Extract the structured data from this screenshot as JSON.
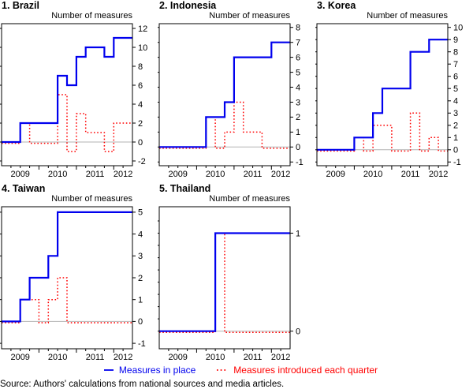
{
  "legend": {
    "in_place": "Measures in place",
    "introduced": "Measures introduced each quarter"
  },
  "footnote": "Source: Authors' calculations from national sources and media articles.",
  "colors": {
    "in_place": "#0000EE",
    "introduced": "#FF0000",
    "zero_line": "#B3B3B3",
    "frame": "#000000"
  },
  "chart_data": [
    {
      "type": "line",
      "step": true,
      "title": "1. Brazil",
      "ylabel": "Number of measures",
      "categories": [
        "2009Q1",
        "2009Q2",
        "2009Q3",
        "2009Q4",
        "2010Q1",
        "2010Q2",
        "2010Q3",
        "2010Q4",
        "2011Q1",
        "2011Q2",
        "2011Q3",
        "2011Q4",
        "2012Q1",
        "2012Q2"
      ],
      "xticklabels": [
        "2009",
        "2010",
        "2011",
        "2012"
      ],
      "series": [
        {
          "name": "Measures in place",
          "values": [
            0,
            0,
            2,
            2,
            2,
            2,
            7,
            6,
            9,
            10,
            10,
            9,
            11,
            11
          ]
        },
        {
          "name": "Measures introduced each quarter",
          "values": [
            0,
            0,
            2,
            0,
            0,
            0,
            5,
            -1,
            3,
            1,
            1,
            -1,
            2,
            2
          ]
        }
      ],
      "ylim": [
        -2.5,
        12.5
      ],
      "yticks": [
        -2,
        0,
        2,
        4,
        6,
        8,
        10,
        12
      ]
    },
    {
      "type": "line",
      "step": true,
      "title": "2. Indonesia",
      "ylabel": "Number of measures",
      "categories": [
        "2009Q1",
        "2009Q2",
        "2009Q3",
        "2009Q4",
        "2010Q1",
        "2010Q2",
        "2010Q3",
        "2010Q4",
        "2011Q1",
        "2011Q2",
        "2011Q3",
        "2011Q4",
        "2012Q1",
        "2012Q2"
      ],
      "xticklabels": [
        "2009",
        "2010",
        "2011",
        "2012"
      ],
      "series": [
        {
          "name": "Measures in place",
          "values": [
            0,
            0,
            0,
            0,
            0,
            2,
            2,
            3,
            6,
            6,
            6,
            6,
            7,
            7
          ]
        },
        {
          "name": "Measures introduced each quarter",
          "values": [
            0,
            0,
            0,
            0,
            0,
            2,
            0,
            1,
            3,
            1,
            1,
            0,
            0,
            0
          ]
        }
      ],
      "ylim": [
        -1.25,
        8.25
      ],
      "yticks": [
        -1,
        0,
        1,
        2,
        3,
        4,
        5,
        6,
        7,
        8
      ]
    },
    {
      "type": "line",
      "step": true,
      "title": "3. Korea",
      "ylabel": "Number of measures",
      "categories": [
        "2009Q1",
        "2009Q2",
        "2009Q3",
        "2009Q4",
        "2010Q1",
        "2010Q2",
        "2010Q3",
        "2010Q4",
        "2011Q1",
        "2011Q2",
        "2011Q3",
        "2011Q4",
        "2012Q1",
        "2012Q2"
      ],
      "xticklabels": [
        "2009",
        "2010",
        "2011",
        "2012"
      ],
      "series": [
        {
          "name": "Measures in place",
          "values": [
            0,
            0,
            0,
            0,
            1,
            1,
            3,
            5,
            5,
            5,
            8,
            8,
            9,
            9
          ]
        },
        {
          "name": "Measures introduced each quarter",
          "values": [
            0,
            0,
            0,
            0,
            1,
            0,
            2,
            2,
            0,
            0,
            3,
            0,
            1,
            0
          ]
        }
      ],
      "ylim": [
        -1.3,
        10.3
      ],
      "yticks": [
        -1,
        0,
        1,
        2,
        3,
        4,
        5,
        6,
        7,
        8,
        9,
        10
      ]
    },
    {
      "type": "line",
      "step": true,
      "title": "4. Taiwan",
      "ylabel": "Number of measures",
      "categories": [
        "2009Q1",
        "2009Q2",
        "2009Q3",
        "2009Q4",
        "2010Q1",
        "2010Q2",
        "2010Q3",
        "2010Q4",
        "2011Q1",
        "2011Q2",
        "2011Q3",
        "2011Q4",
        "2012Q1",
        "2012Q2"
      ],
      "xticklabels": [
        "2009",
        "2010",
        "2011",
        "2012"
      ],
      "series": [
        {
          "name": "Measures in place",
          "values": [
            0,
            0,
            1,
            2,
            2,
            3,
            5,
            5,
            5,
            5,
            5,
            5,
            5,
            5
          ]
        },
        {
          "name": "Measures introduced each quarter",
          "values": [
            0,
            0,
            1,
            1,
            0,
            1,
            2,
            0,
            0,
            0,
            0,
            0,
            0,
            0
          ]
        }
      ],
      "ylim": [
        -1.25,
        5.25
      ],
      "yticks": [
        -1,
        0,
        1,
        2,
        3,
        4,
        5
      ]
    },
    {
      "type": "line",
      "step": true,
      "title": "5. Thailand",
      "ylabel": "Number of measures",
      "categories": [
        "2009Q1",
        "2009Q2",
        "2009Q3",
        "2009Q4",
        "2010Q1",
        "2010Q2",
        "2010Q3",
        "2010Q4",
        "2011Q1",
        "2011Q2",
        "2011Q3",
        "2011Q4",
        "2012Q1",
        "2012Q2"
      ],
      "xticklabels": [
        "2009",
        "2010",
        "2011",
        "2012"
      ],
      "series": [
        {
          "name": "Measures in place",
          "values": [
            0,
            0,
            0,
            0,
            0,
            0,
            1,
            1,
            1,
            1,
            1,
            1,
            1,
            1
          ]
        },
        {
          "name": "Measures introduced each quarter",
          "values": [
            0,
            0,
            0,
            0,
            0,
            0,
            1,
            0,
            0,
            0,
            0,
            0,
            0,
            0
          ]
        }
      ],
      "ylim": [
        -0.18,
        1.27
      ],
      "yticks": [
        0,
        1
      ],
      "yminor": [
        0.125,
        0.25,
        0.375,
        0.5,
        0.625,
        0.75,
        0.875,
        1.125
      ]
    }
  ]
}
